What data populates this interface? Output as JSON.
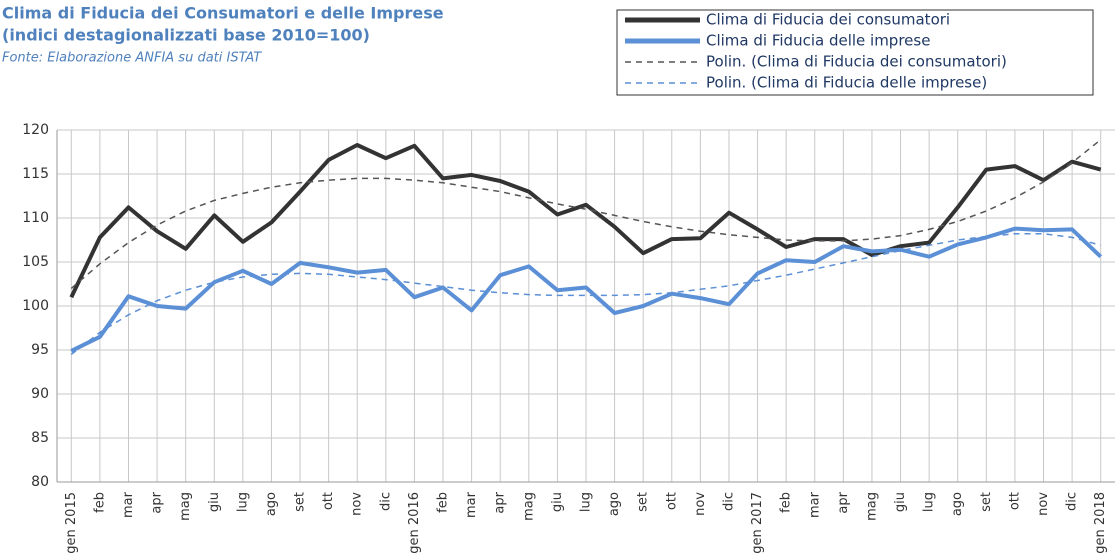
{
  "chart_data": {
    "type": "line",
    "title": "Clima di Fiducia dei Consumatori e delle Imprese",
    "subtitle": "(indici destagionalizzati base 2010=100)",
    "source": "Fonte: Elaborazione ANFIA su dati ISTAT",
    "categories": [
      "gen 2015",
      "feb",
      "mar",
      "apr",
      "mag",
      "giu",
      "lug",
      "ago",
      "set",
      "ott",
      "nov",
      "dic",
      "gen 2016",
      "feb",
      "mar",
      "apr",
      "mag",
      "giu",
      "lug",
      "ago",
      "set",
      "ott",
      "nov",
      "dic",
      "gen 2017",
      "feb",
      "mar",
      "apr",
      "mag",
      "giu",
      "lug",
      "ago",
      "set",
      "ott",
      "nov",
      "dic",
      "gen 2018"
    ],
    "series": [
      {
        "name": "Clima di Fiducia dei consumatori",
        "color": "#333333",
        "dashed": false,
        "values": [
          101,
          107.8,
          111.2,
          108.5,
          106.5,
          110.3,
          107.3,
          109.5,
          113,
          116.6,
          118.3,
          116.8,
          118.2,
          114.5,
          114.9,
          114.2,
          113,
          110.4,
          111.5,
          109,
          106,
          107.6,
          107.7,
          110.6,
          108.7,
          106.7,
          107.6,
          107.6,
          105.8,
          106.8,
          107.2,
          111.2,
          115.5,
          115.9,
          114.3,
          116.4,
          115.5
        ]
      },
      {
        "name": "Clima di Fiducia delle imprese",
        "color": "#5b8fd6",
        "dashed": false,
        "values": [
          94.9,
          96.5,
          101.1,
          100,
          99.7,
          102.7,
          104,
          102.5,
          104.9,
          104.4,
          103.8,
          104.1,
          101,
          102.1,
          99.5,
          103.5,
          104.5,
          101.8,
          102.1,
          99.2,
          100,
          101.4,
          100.9,
          100.2,
          103.7,
          105.2,
          105,
          106.8,
          106.2,
          106.4,
          105.6,
          107,
          107.8,
          108.8,
          108.6,
          108.7,
          105.6
        ]
      },
      {
        "name": "Polin. (Clima di Fiducia dei consumatori)",
        "color": "#555555",
        "dashed": true,
        "values": [
          102,
          104.8,
          107.2,
          109.2,
          110.8,
          112,
          112.8,
          113.5,
          114,
          114.3,
          114.5,
          114.5,
          114.3,
          114,
          113.5,
          113,
          112.3,
          111.6,
          111,
          110.3,
          109.6,
          109,
          108.5,
          108.1,
          107.8,
          107.5,
          107.4,
          107.4,
          107.6,
          108,
          108.7,
          109.6,
          110.8,
          112.3,
          114.1,
          116.3,
          118.9
        ]
      },
      {
        "name": "Polin. (Clima di Fiducia delle imprese)",
        "color": "#5b8fd6",
        "dashed": true,
        "values": [
          94.5,
          97,
          99,
          100.6,
          101.8,
          102.7,
          103.3,
          103.6,
          103.7,
          103.6,
          103.3,
          103,
          102.6,
          102.2,
          101.8,
          101.5,
          101.3,
          101.2,
          101.2,
          101.2,
          101.3,
          101.5,
          101.9,
          102.3,
          102.9,
          103.5,
          104.2,
          104.9,
          105.6,
          106.3,
          106.9,
          107.5,
          107.9,
          108.2,
          108.2,
          107.8,
          106.9
        ]
      }
    ],
    "ylim": [
      80,
      120
    ],
    "yticks": [
      80,
      85,
      90,
      95,
      100,
      105,
      110,
      115,
      120
    ],
    "grid": true,
    "legend": "top right"
  }
}
